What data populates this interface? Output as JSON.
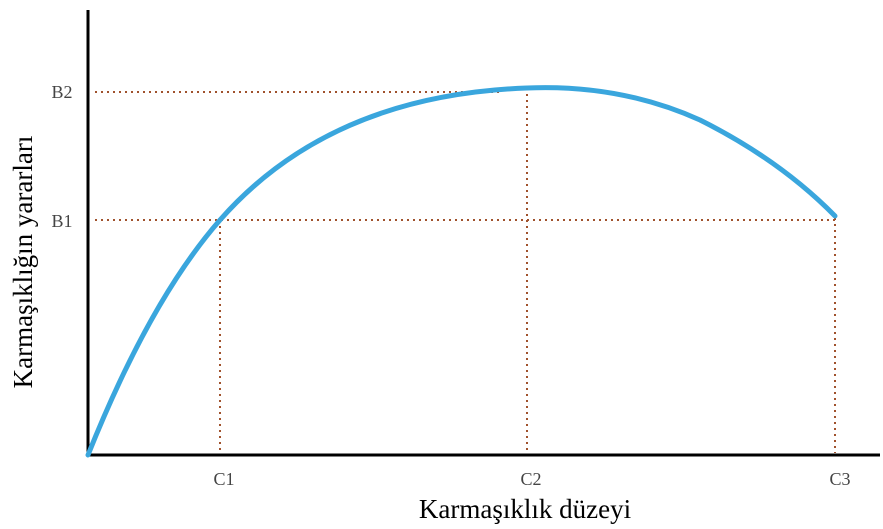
{
  "axes": {
    "x_label": "Karmaşıklık düzeyi",
    "y_label": "Karmaşıklığın yararları",
    "x_ticks": [
      "C1",
      "C2",
      "C3"
    ],
    "y_ticks": [
      "B1",
      "B2"
    ]
  }
}
